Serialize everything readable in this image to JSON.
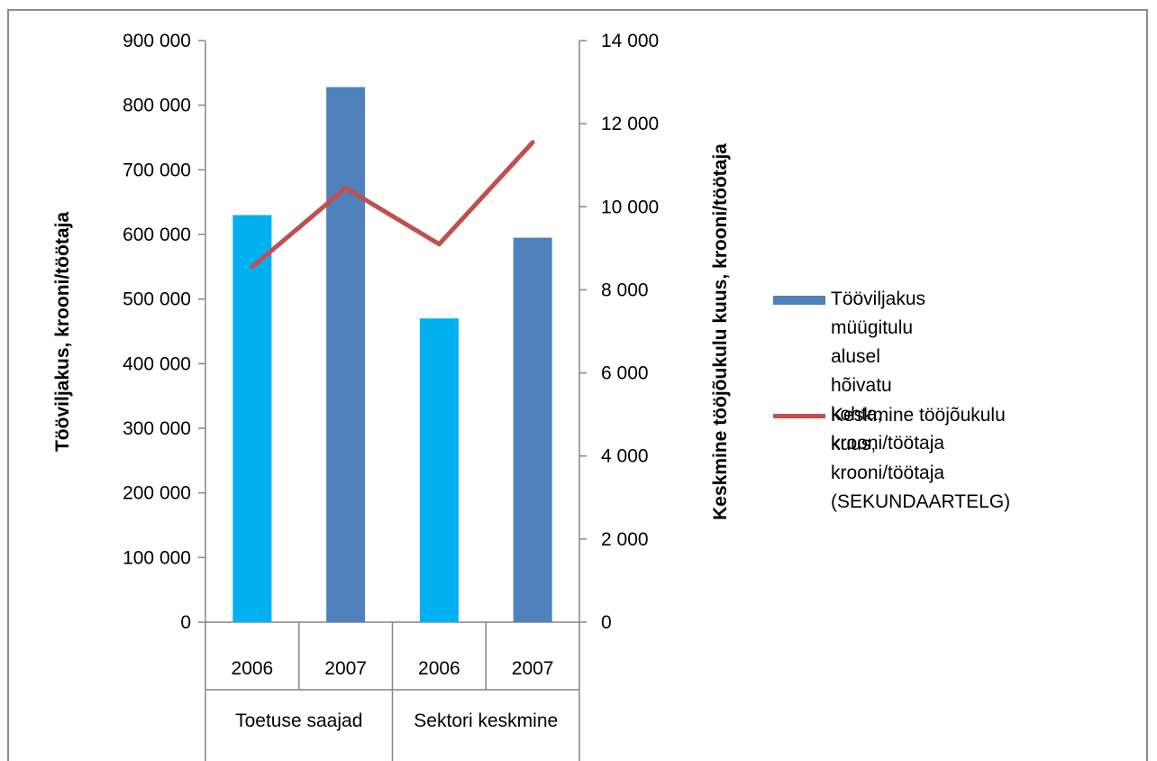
{
  "chart_data": {
    "type": "bar",
    "title": "",
    "categories": [
      {
        "year": "2006",
        "group": "Toetuse saajad"
      },
      {
        "year": "2007",
        "group": "Toetuse saajad"
      },
      {
        "year": "2006",
        "group": "Sektori keskmine"
      },
      {
        "year": "2007",
        "group": "Sektori keskmine"
      }
    ],
    "groups": [
      "Toetuse saajad",
      "Sektori keskmine"
    ],
    "years": [
      "2006",
      "2007",
      "2006",
      "2007"
    ],
    "series": [
      {
        "name": "Tööviljakus müügitulu alusel hõivatu kohta, krooni/töötaja",
        "kind": "bar",
        "axis": "left",
        "values": [
          630000,
          828000,
          470000,
          595000
        ],
        "bar_colors": [
          "#00b0f0",
          "#4f81bd",
          "#00b0f0",
          "#4f81bd"
        ]
      },
      {
        "name": "Keskmine tööjõukulu kuus, krooni/töötaja (SEKUNDAARTELG)",
        "kind": "line",
        "axis": "right",
        "values": [
          8550,
          10450,
          9100,
          11550
        ],
        "color": "#c0504d"
      }
    ],
    "y_left": {
      "label": "Tööviljakus,  krooni/töötaja",
      "ylim": [
        0,
        900000
      ],
      "ticks": [
        "0",
        "100 000",
        "200 000",
        "300 000",
        "400 000",
        "500 000",
        "600 000",
        "700 000",
        "800 000",
        "900 000"
      ]
    },
    "y_right": {
      "label": "Keskmine tööjõukulu kuus, krooni/töötaja",
      "ylim": [
        0,
        14000
      ],
      "ticks": [
        "0",
        "2 000",
        "4 000",
        "6 000",
        "8 000",
        "10 000",
        "12 000",
        "14 000"
      ]
    },
    "grid": false,
    "legend_position": "right"
  },
  "legend": {
    "bar_label": "Tööviljakus müügitulu alusel\nhõivatu kohta,\nkrooni/töötaja",
    "line_label": "Keskmine tööjõukulu kuus,\nkrooni/töötaja\n(SEKUNDAARTELG)"
  },
  "colors": {
    "bar_light": "#00b0f0",
    "bar_dark": "#4f81bd",
    "line": "#c0504d",
    "axis": "#868686"
  }
}
